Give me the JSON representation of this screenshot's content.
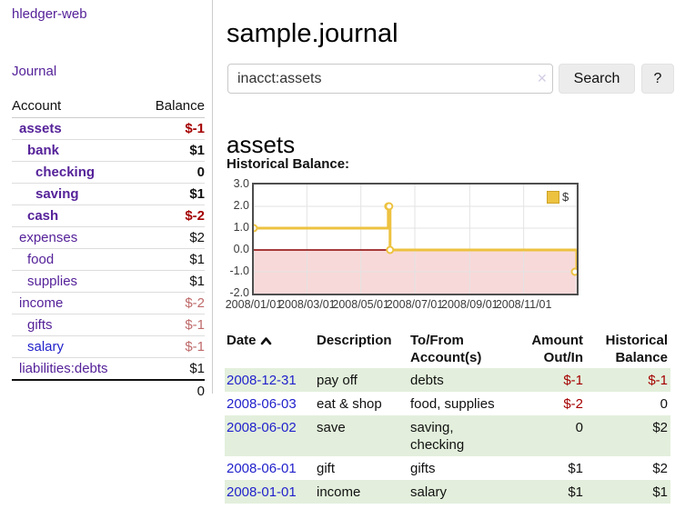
{
  "app": {
    "title": "hledger-web",
    "nav_journal": "Journal"
  },
  "sidebar": {
    "col_account": "Account",
    "col_balance": "Balance",
    "accounts": [
      {
        "name": "assets",
        "balance": "$-1",
        "depth": 1,
        "bold": true,
        "balance_style": "neg"
      },
      {
        "name": "bank",
        "balance": "$1",
        "depth": 2,
        "bold": true,
        "balance_style": "normal"
      },
      {
        "name": "checking",
        "balance": "0",
        "depth": 3,
        "bold": true,
        "balance_style": "normal"
      },
      {
        "name": "saving",
        "balance": "$1",
        "depth": 3,
        "bold": true,
        "balance_style": "normal"
      },
      {
        "name": "cash",
        "balance": "$-2",
        "depth": 2,
        "bold": true,
        "balance_style": "neg"
      },
      {
        "name": "expenses",
        "balance": "$2",
        "depth": 1,
        "bold": false,
        "balance_style": "normal"
      },
      {
        "name": "food",
        "balance": "$1",
        "depth": 2,
        "bold": false,
        "balance_style": "normal"
      },
      {
        "name": "supplies",
        "balance": "$1",
        "depth": 2,
        "bold": false,
        "balance_style": "normal"
      },
      {
        "name": "income",
        "balance": "$-2",
        "depth": 1,
        "bold": false,
        "balance_style": "softneg"
      },
      {
        "name": "gifts",
        "balance": "$-1",
        "depth": 2,
        "bold": false,
        "balance_style": "softneg"
      },
      {
        "name": "salary",
        "balance": "$-1",
        "depth": 2,
        "bold": false,
        "balance_style": "softneg",
        "link_color": "#2222cc"
      },
      {
        "name": "liabilities:debts",
        "balance": "$1",
        "depth": 1,
        "bold": false,
        "balance_style": "normal"
      }
    ],
    "total": "0"
  },
  "header": {
    "title": "sample.journal"
  },
  "search": {
    "value": "inacct:assets",
    "clear_icon": "✕",
    "button_label": "Search",
    "help_label": "?"
  },
  "account_page": {
    "heading": "assets",
    "chart_label": "Historical Balance:"
  },
  "chart_data": {
    "type": "line",
    "step": true,
    "title": "Historical Balance:",
    "legend": {
      "label": "$",
      "swatch_color": "#edc240",
      "position": "top-right"
    },
    "series": [
      {
        "name": "$",
        "color": "#edc240",
        "points": [
          [
            "2008-01-01",
            1
          ],
          [
            "2008-06-01",
            2
          ],
          [
            "2008-06-02",
            2
          ],
          [
            "2008-06-03",
            0
          ],
          [
            "2008-12-31",
            -1
          ]
        ]
      }
    ],
    "xlim": [
      "2008-01-01",
      "2008-12-31"
    ],
    "ylim": [
      -2,
      3
    ],
    "y_ticks": [
      3.0,
      2.0,
      1.0,
      0.0,
      -1.0,
      -2.0
    ],
    "x_ticks": [
      {
        "label": "2008/01/01",
        "date": "2008-01-01"
      },
      {
        "label": "2008/03/01",
        "date": "2008-03-01"
      },
      {
        "label": "2008/05/01",
        "date": "2008-05-01"
      },
      {
        "label": "2008/07/01",
        "date": "2008-07-01"
      },
      {
        "label": "2008/09/01",
        "date": "2008-09-01"
      },
      {
        "label": "2008/11/01",
        "date": "2008-11-01"
      },
      {
        "label": "",
        "date": "2008-12-30"
      }
    ],
    "grid": true,
    "negative_region_color": "#f8d9d9",
    "zero_line_color": "#8b0000",
    "gridline_color": "#e3e3e3"
  },
  "register": {
    "headers": {
      "date": "Date",
      "description": "Description",
      "accounts": "To/From Account(s)",
      "amount": "Amount Out/In",
      "balance": "Historical Balance"
    },
    "sort": {
      "column": "date",
      "direction": "asc"
    },
    "rows": [
      {
        "date": "2008-12-31",
        "description": "pay off",
        "accounts": "debts",
        "amount": "$-1",
        "balance": "$-1",
        "amount_style": "neg",
        "balance_style": "neg",
        "green": true
      },
      {
        "date": "2008-06-03",
        "description": "eat & shop",
        "accounts": "food, supplies",
        "amount": "$-2",
        "balance": "0",
        "amount_style": "neg",
        "balance_style": "normal",
        "green": false
      },
      {
        "date": "2008-06-02",
        "description": "save",
        "accounts": "saving, checking",
        "amount": "0",
        "balance": "$2",
        "amount_style": "normal",
        "balance_style": "normal",
        "green": true
      },
      {
        "date": "2008-06-01",
        "description": "gift",
        "accounts": "gifts",
        "amount": "$1",
        "balance": "$2",
        "amount_style": "normal",
        "balance_style": "normal",
        "green": false
      },
      {
        "date": "2008-01-01",
        "description": "income",
        "accounts": "salary",
        "amount": "$1",
        "balance": "$1",
        "amount_style": "normal",
        "balance_style": "normal",
        "green": true
      }
    ]
  }
}
